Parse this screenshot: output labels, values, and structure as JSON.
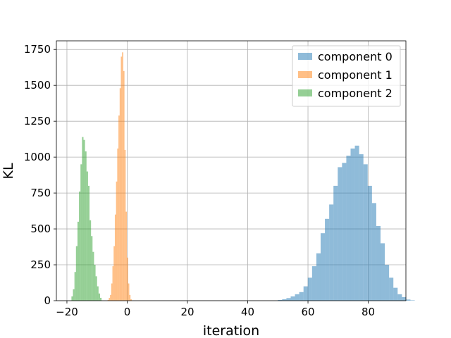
{
  "chart_data": {
    "type": "histogram",
    "title": "",
    "xlabel": "iteration",
    "ylabel": "KL",
    "xlim": [
      -23.5,
      92.5
    ],
    "ylim": [
      0,
      1810
    ],
    "xticks": [
      -20,
      0,
      20,
      40,
      60,
      80
    ],
    "yticks": [
      0,
      250,
      500,
      750,
      1000,
      1250,
      1500,
      1750
    ],
    "xtick_labels": [
      "−20",
      "0",
      "20",
      "40",
      "60",
      "80"
    ],
    "ytick_labels": [
      "0",
      "250",
      "500",
      "750",
      "1000",
      "1250",
      "1500",
      "1750"
    ],
    "grid": true,
    "legend_position": "top-right",
    "series": [
      {
        "name": "component 0",
        "color": "#1f77b4",
        "alpha": 0.5,
        "bin_start": 50.0,
        "bin_width": 1.42,
        "values": [
          5,
          10,
          18,
          30,
          45,
          60,
          100,
          160,
          240,
          330,
          470,
          570,
          670,
          800,
          930,
          960,
          1010,
          1060,
          1080,
          1020,
          950,
          800,
          680,
          520,
          400,
          250,
          160,
          90,
          45,
          25,
          8,
          3
        ]
      },
      {
        "name": "component 1",
        "color": "#ff7f0e",
        "alpha": 0.5,
        "bin_start": -6.5,
        "bin_width": 0.4,
        "values": [
          5,
          20,
          40,
          120,
          240,
          380,
          600,
          830,
          1060,
          1290,
          1480,
          1700,
          1730,
          1600,
          1050,
          620,
          300,
          120,
          40,
          10
        ]
      },
      {
        "name": "component 2",
        "color": "#2ca02c",
        "alpha": 0.5,
        "bin_start": -18.5,
        "bin_width": 0.5,
        "values": [
          30,
          80,
          200,
          380,
          550,
          760,
          950,
          1140,
          1120,
          1040,
          900,
          800,
          560,
          450,
          340,
          250,
          170,
          100,
          50,
          20
        ]
      }
    ]
  }
}
